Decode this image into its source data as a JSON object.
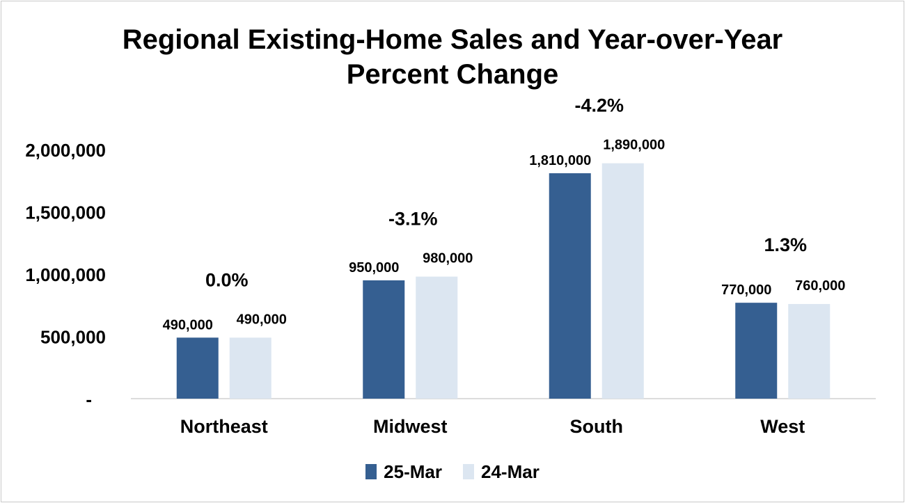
{
  "chart_data": {
    "type": "bar",
    "title_lines": [
      "Regional Existing-Home Sales and Year-over-Year",
      "Percent Change"
    ],
    "categories": [
      "Northeast",
      "Midwest",
      "South",
      "West"
    ],
    "series": [
      {
        "name": "25-Mar",
        "values": [
          490000,
          950000,
          1810000,
          770000
        ],
        "labels": [
          "490,000",
          "950,000",
          "1,810,000",
          "770,000"
        ],
        "color": "#355f91"
      },
      {
        "name": "24-Mar",
        "values": [
          490000,
          980000,
          1890000,
          760000
        ],
        "labels": [
          "490,000",
          "980,000",
          "1,890,000",
          "760,000"
        ],
        "color": "#dce6f1"
      }
    ],
    "annotations": [
      "0.0%",
      "-3.1%",
      "-4.2%",
      "1.3%"
    ],
    "yticks": [
      {
        "value": 0,
        "label": "-"
      },
      {
        "value": 500000,
        "label": "500,000"
      },
      {
        "value": 1000000,
        "label": "1,000,000"
      },
      {
        "value": 1500000,
        "label": "1,500,000"
      },
      {
        "value": 2000000,
        "label": "2,000,000"
      }
    ],
    "ylim": [
      0,
      2000000
    ],
    "grid": false,
    "legend_position": "bottom"
  }
}
